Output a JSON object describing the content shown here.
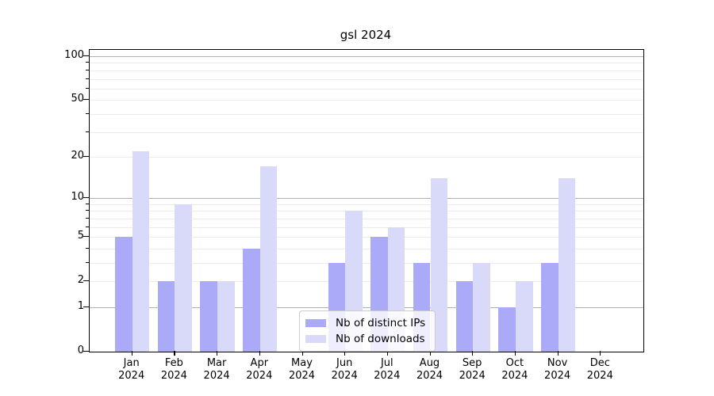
{
  "chart_data": {
    "type": "bar",
    "title": "gsl 2024",
    "scale": "log1p",
    "categories": [
      "Jan 2024",
      "Feb 2024",
      "Mar 2024",
      "Apr 2024",
      "May 2024",
      "Jun 2024",
      "Jul 2024",
      "Aug 2024",
      "Sep 2024",
      "Oct 2024",
      "Nov 2024",
      "Dec 2024"
    ],
    "x_tick_months": [
      "Jan",
      "Feb",
      "Mar",
      "Apr",
      "May",
      "Jun",
      "Jul",
      "Aug",
      "Sep",
      "Oct",
      "Nov",
      "Dec"
    ],
    "x_tick_year": "2024",
    "series": [
      {
        "name": "Nb of distinct IPs",
        "color": "#aaaaf8",
        "values": [
          5,
          2,
          2,
          4,
          0,
          3,
          5,
          3,
          2,
          1,
          3,
          0
        ]
      },
      {
        "name": "Nb of downloads",
        "color": "#d9d9f9",
        "values": [
          22,
          9,
          2,
          17,
          0,
          8,
          6,
          14,
          3,
          2,
          14,
          0
        ]
      }
    ],
    "y_axis": {
      "labeled_ticks": [
        0,
        1,
        2,
        5,
        10,
        20,
        50,
        100
      ],
      "tick_labels": [
        "0",
        "1",
        "2",
        "5",
        "10",
        "20",
        "50",
        "100"
      ],
      "major_gridlines": [
        1,
        10,
        100
      ],
      "minor_gridlines": [
        2,
        3,
        4,
        5,
        6,
        7,
        8,
        9,
        20,
        30,
        40,
        50,
        60,
        70,
        80,
        90
      ],
      "ylim": [
        0,
        110
      ]
    },
    "legend": {
      "position": "lower center",
      "entries": [
        "Nb of distinct IPs",
        "Nb of downloads"
      ]
    },
    "colors": {
      "grid_major": "#b0b0b0",
      "grid_minor": "#ebebeb",
      "axis": "#000000",
      "background": "#ffffff",
      "text": "#000000"
    }
  }
}
